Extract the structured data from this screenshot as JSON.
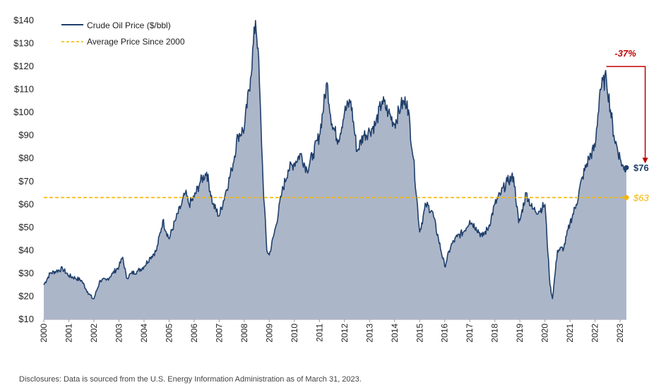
{
  "chart_data": {
    "type": "area",
    "title": "",
    "xlabel": "",
    "ylabel": "",
    "xlim": [
      2000,
      2023.25
    ],
    "ylim": [
      10,
      140
    ],
    "y_tick_labels": [
      "$10",
      "$20",
      "$30",
      "$40",
      "$50",
      "$60",
      "$70",
      "$80",
      "$90",
      "$100",
      "$110",
      "$120",
      "$130",
      "$140"
    ],
    "y_tick_values": [
      10,
      20,
      30,
      40,
      50,
      60,
      70,
      80,
      90,
      100,
      110,
      120,
      130,
      140
    ],
    "x_tick_labels": [
      "2000",
      "2001",
      "2002",
      "2003",
      "2004",
      "2005",
      "2006",
      "2007",
      "2008",
      "2009",
      "2010",
      "2011",
      "2012",
      "2013",
      "2014",
      "2015",
      "2016",
      "2017",
      "2018",
      "2019",
      "2020",
      "2021",
      "2022",
      "2023"
    ],
    "grid": false,
    "legend_position": "top-left",
    "series": [
      {
        "name": "Crude Oil Price ($/bbl)",
        "color": "#1f3f6b",
        "fill": "#acb6c9",
        "x": [
          2000.0,
          2000.25,
          2000.5,
          2000.75,
          2001.0,
          2001.25,
          2001.5,
          2001.75,
          2001.95,
          2002.0,
          2002.25,
          2002.5,
          2002.75,
          2003.0,
          2003.15,
          2003.3,
          2003.5,
          2003.75,
          2004.0,
          2004.25,
          2004.5,
          2004.75,
          2005.0,
          2005.25,
          2005.5,
          2005.65,
          2005.8,
          2006.0,
          2006.25,
          2006.5,
          2006.75,
          2007.0,
          2007.25,
          2007.5,
          2007.75,
          2008.0,
          2008.25,
          2008.45,
          2008.55,
          2008.75,
          2008.9,
          2009.0,
          2009.25,
          2009.5,
          2009.75,
          2010.0,
          2010.25,
          2010.5,
          2010.75,
          2011.0,
          2011.3,
          2011.5,
          2011.75,
          2012.0,
          2012.25,
          2012.5,
          2012.75,
          2013.0,
          2013.25,
          2013.5,
          2013.75,
          2014.0,
          2014.25,
          2014.5,
          2014.75,
          2015.0,
          2015.25,
          2015.5,
          2015.75,
          2016.0,
          2016.25,
          2016.5,
          2016.75,
          2017.0,
          2017.25,
          2017.5,
          2017.75,
          2018.0,
          2018.25,
          2018.5,
          2018.75,
          2018.95,
          2019.0,
          2019.25,
          2019.5,
          2019.75,
          2020.0,
          2020.2,
          2020.3,
          2020.5,
          2020.75,
          2021.0,
          2021.25,
          2021.5,
          2021.75,
          2022.0,
          2022.2,
          2022.45,
          2022.75,
          2023.0,
          2023.15,
          2023.25
        ],
        "values": [
          25,
          30,
          31,
          32,
          29,
          28,
          27,
          22,
          19,
          19,
          27,
          27,
          30,
          33,
          37,
          28,
          30,
          31,
          33,
          37,
          40,
          53,
          45,
          53,
          60,
          65,
          60,
          63,
          70,
          74,
          60,
          55,
          65,
          75,
          90,
          93,
          115,
          140,
          128,
          70,
          40,
          38,
          50,
          65,
          75,
          78,
          82,
          75,
          82,
          90,
          113,
          95,
          88,
          100,
          105,
          83,
          90,
          92,
          95,
          105,
          100,
          95,
          103,
          105,
          80,
          48,
          60,
          57,
          45,
          33,
          42,
          46,
          48,
          53,
          50,
          46,
          50,
          60,
          65,
          70,
          72,
          52,
          53,
          65,
          58,
          57,
          60,
          25,
          19,
          40,
          41,
          52,
          60,
          72,
          80,
          85,
          110,
          115,
          90,
          80,
          75,
          76
        ]
      }
    ],
    "reference_lines": [
      {
        "name": "Average Price Since 2000",
        "value": 63,
        "label": "$63",
        "color": "#f2b600",
        "style": "dashed"
      }
    ],
    "annotations": [
      {
        "label": "-37%",
        "color": "#c00000",
        "from_x": 2022.45,
        "from_value": 120,
        "to_x": 2023.0,
        "to_value": 76
      },
      {
        "label": "$76",
        "color": "#1f3f6b",
        "point_x": 2023.25,
        "point_value": 76
      }
    ]
  },
  "footer": {
    "disclosure": "Disclosures: Data is sourced from the U.S. Energy Information Administration as of March 31, 2023."
  }
}
